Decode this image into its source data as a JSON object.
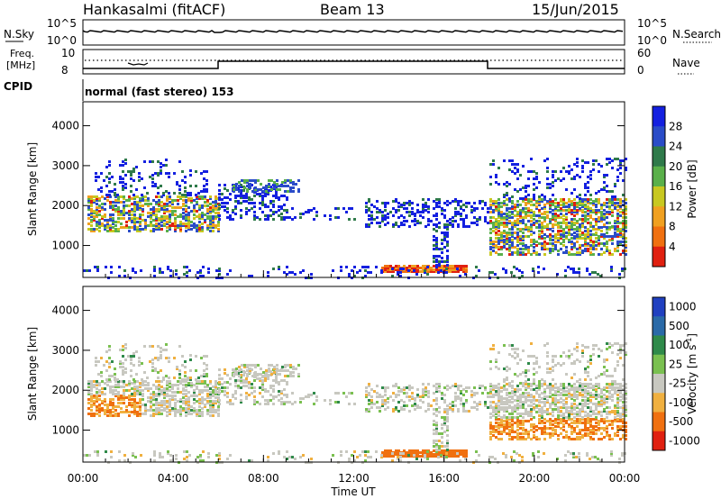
{
  "header": {
    "station": "Hankasalmi (fitACF)",
    "beam": "Beam 13",
    "date": "15/Jun/2015",
    "cpid_label": "CPID",
    "cpid_text": "normal (fast stereo) 153"
  },
  "chart_data": [
    {
      "type": "line",
      "name": "noise-strip",
      "left_label": "N.Sky",
      "right_label": "N.Search",
      "left_ticks": [
        "10^5",
        "10^0"
      ],
      "right_ticks": [
        "10^5",
        "10^0"
      ]
    },
    {
      "type": "line",
      "name": "freq-nave-strip",
      "left_label_lines": [
        "Freq.",
        "[MHz]"
      ],
      "right_label": "Nave",
      "left_ticks": [
        "10",
        "8"
      ],
      "right_ticks": [
        "60",
        "0"
      ]
    },
    {
      "type": "heatmap",
      "name": "power-panel",
      "ylabel": "Slant Range [km]",
      "ylim": [
        200,
        4600
      ],
      "yticks": [
        1000,
        2000,
        3000,
        4000
      ],
      "colorbar_label": "Power [dB]",
      "colorbar_ticks": [
        4,
        8,
        12,
        16,
        20,
        24,
        28
      ],
      "colorbar_colors": [
        "#1420e0",
        "#2a4cc8",
        "#2f7a4a",
        "#5ab04a",
        "#c8c820",
        "#f0a020",
        "#f07010",
        "#e02010"
      ]
    },
    {
      "type": "heatmap",
      "name": "velocity-panel",
      "ylabel": "Slant Range [km]",
      "ylim": [
        200,
        4600
      ],
      "yticks": [
        1000,
        2000,
        3000,
        4000
      ],
      "colorbar_label": "Velocity [m s",
      "colorbar_unit_sup": "-1",
      "colorbar_label_end": "]",
      "colorbar_ticks": [
        "1000",
        "500",
        "100",
        "25",
        "-25",
        "-100",
        "-500",
        "-1000"
      ],
      "colorbar_colors": [
        "#2040c0",
        "#2a6aa8",
        "#2f8a4a",
        "#7ac050",
        "#c8c8c0",
        "#f0b040",
        "#f07010",
        "#e02010"
      ]
    }
  ],
  "x_axis": {
    "label": "Time UT",
    "ticks": [
      "00:00",
      "04:00",
      "08:00",
      "12:00",
      "16:00",
      "20:00",
      "00:00"
    ]
  }
}
